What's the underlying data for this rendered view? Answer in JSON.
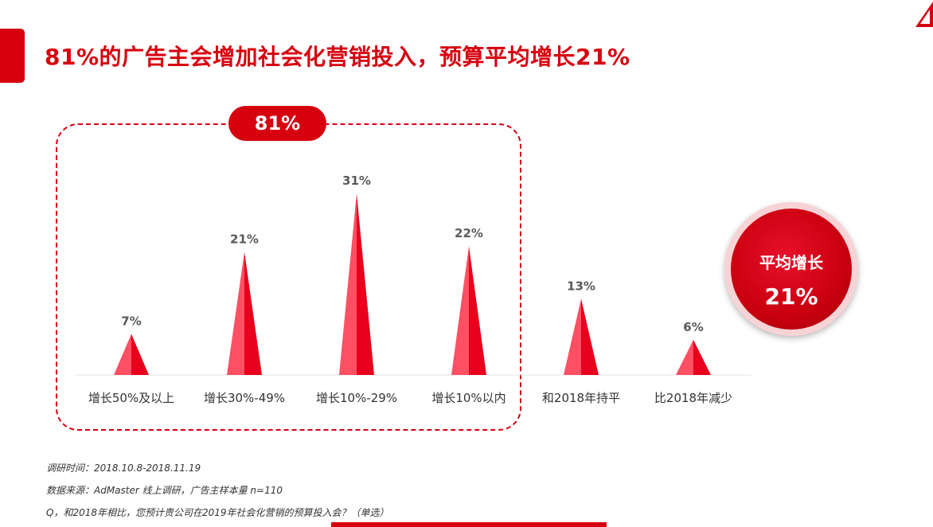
{
  "title": "81%的广告主会增加社会化营销投入，预算平均增长21%",
  "group_label": "81%",
  "average_badge": {
    "label": "平均增长",
    "value": "21%"
  },
  "notes": [
    "调研时间：2018.10.8-2018.11.19",
    "数据来源：AdMaster  线上调研，广告主样本量  n=110",
    "Q，和2018年相比，您预计贵公司在2019年社会化营销的预算投入会？（单选）"
  ],
  "colors": {
    "accent": "#d7000f",
    "peak_light": "#ff4f63",
    "peak_dark": "#e8001c"
  },
  "chart_data": {
    "type": "bar",
    "style": "triangle-peaks",
    "categories": [
      "增长50%及以上",
      "增长30%-49%",
      "增长10%-29%",
      "增长10%以内",
      "和2018年持平",
      "比2018年减少"
    ],
    "values": [
      7,
      21,
      31,
      22,
      13,
      6
    ],
    "value_labels": [
      "7%",
      "21%",
      "31%",
      "22%",
      "13%",
      "6%"
    ],
    "ylim": [
      0,
      31
    ],
    "grid": false,
    "highlight_group": {
      "categories": [
        0,
        1,
        2,
        3
      ],
      "label": "81%"
    }
  }
}
